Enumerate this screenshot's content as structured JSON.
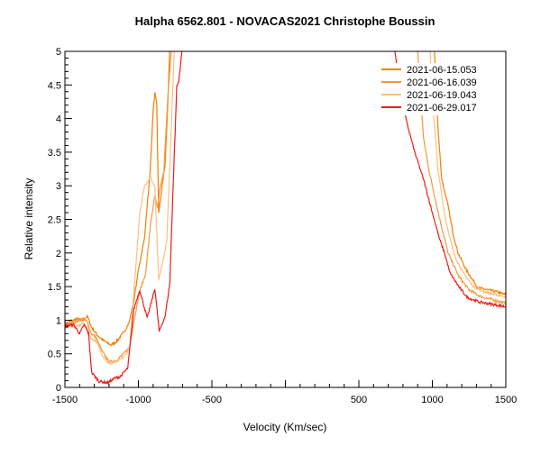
{
  "chart_data": {
    "type": "line",
    "title": "Halpha 6562.801 - NOVACAS2021   Christophe Boussin",
    "xlabel": "Velocity (Km/sec)",
    "ylabel": "Relative intensity",
    "xlim": [
      -1500,
      1500
    ],
    "ylim": [
      0,
      5
    ],
    "x_tick_labels": [
      "-1500",
      "-1000",
      "-500",
      "500",
      "1000",
      "1500"
    ],
    "x_tick_values": [
      -1500,
      -1000,
      -500,
      500,
      1000,
      1500
    ],
    "y_ticks": [
      "0",
      "0.5",
      "1",
      "1.5",
      "2",
      "2.5",
      "3",
      "3.5",
      "4",
      "4.5",
      "5"
    ],
    "grid": false,
    "legend_position": "top-right",
    "series": [
      {
        "name": "2021-06-15.053",
        "color": "#f57f00",
        "points": [
          [
            -1500,
            0.95
          ],
          [
            -1460,
            0.98
          ],
          [
            -1420,
            1.02
          ],
          [
            -1380,
            1.0
          ],
          [
            -1347,
            1.06
          ],
          [
            -1320,
            0.9
          ],
          [
            -1280,
            0.78
          ],
          [
            -1240,
            0.7
          ],
          [
            -1187,
            0.63
          ],
          [
            -1150,
            0.68
          ],
          [
            -1100,
            0.82
          ],
          [
            -1064,
            0.96
          ],
          [
            -1030,
            1.3
          ],
          [
            -1000,
            1.75
          ],
          [
            -960,
            2.2
          ],
          [
            -920,
            3.2
          ],
          [
            -900,
            4.1
          ],
          [
            -887,
            4.4
          ],
          [
            -875,
            4.2
          ],
          [
            -862,
            2.59
          ],
          [
            -850,
            2.8
          ],
          [
            -819,
            3.3
          ],
          [
            -800,
            4.2
          ],
          [
            -788,
            5.0
          ],
          [
            1015,
            5.0
          ],
          [
            1040,
            3.8
          ],
          [
            1064,
            3.1
          ],
          [
            1107,
            2.7
          ],
          [
            1140,
            2.3
          ],
          [
            1175,
            2.0
          ],
          [
            1230,
            1.75
          ],
          [
            1310,
            1.48
          ],
          [
            1380,
            1.45
          ],
          [
            1440,
            1.42
          ],
          [
            1500,
            1.38
          ]
        ]
      },
      {
        "name": "2021-06-16.039",
        "color": "#f7983a",
        "points": [
          [
            -1500,
            0.92
          ],
          [
            -1460,
            0.95
          ],
          [
            -1420,
            0.98
          ],
          [
            -1380,
            1.02
          ],
          [
            -1350,
            0.98
          ],
          [
            -1320,
            0.8
          ],
          [
            -1290,
            0.75
          ],
          [
            -1250,
            0.55
          ],
          [
            -1200,
            0.38
          ],
          [
            -1150,
            0.4
          ],
          [
            -1100,
            0.5
          ],
          [
            -1060,
            0.6
          ],
          [
            -1030,
            1.0
          ],
          [
            -991,
            1.43
          ],
          [
            -950,
            1.7
          ],
          [
            -919,
            2.41
          ],
          [
            -888,
            2.84
          ],
          [
            -870,
            2.68
          ],
          [
            -854,
            2.95
          ],
          [
            -827,
            3.22
          ],
          [
            -797,
            4.42
          ],
          [
            -776,
            5.0
          ],
          [
            900,
            5.0
          ],
          [
            940,
            3.7
          ],
          [
            980,
            3.2
          ],
          [
            1040,
            2.6
          ],
          [
            1107,
            2.0
          ],
          [
            1180,
            1.65
          ],
          [
            1250,
            1.45
          ],
          [
            1330,
            1.35
          ],
          [
            1420,
            1.3
          ],
          [
            1500,
            1.25
          ]
        ]
      },
      {
        "name": "2021-06-19.043",
        "color": "#fbbf86",
        "points": [
          [
            -1500,
            0.88
          ],
          [
            -1460,
            0.92
          ],
          [
            -1420,
            0.9
          ],
          [
            -1380,
            0.95
          ],
          [
            -1350,
            0.9
          ],
          [
            -1320,
            0.72
          ],
          [
            -1290,
            0.7
          ],
          [
            -1250,
            0.5
          ],
          [
            -1200,
            0.35
          ],
          [
            -1150,
            0.38
          ],
          [
            -1100,
            0.45
          ],
          [
            -1060,
            0.58
          ],
          [
            -1021,
            1.7
          ],
          [
            -991,
            2.59
          ],
          [
            -960,
            2.99
          ],
          [
            -919,
            3.13
          ],
          [
            -888,
            2.99
          ],
          [
            -862,
            1.61
          ],
          [
            -837,
            1.83
          ],
          [
            -807,
            2.19
          ],
          [
            -786,
            3.31
          ],
          [
            -756,
            5.0
          ],
          [
            985,
            5.0
          ],
          [
            1010,
            4.0
          ],
          [
            1040,
            3.2
          ],
          [
            1090,
            2.5
          ],
          [
            1144,
            2.0
          ],
          [
            1210,
            1.7
          ],
          [
            1280,
            1.5
          ],
          [
            1360,
            1.42
          ],
          [
            1430,
            1.38
          ],
          [
            1500,
            1.35
          ]
        ]
      },
      {
        "name": "2021-06-29.017",
        "color": "#ee1c1c",
        "points": [
          [
            -1500,
            0.9
          ],
          [
            -1492,
            0.92
          ],
          [
            -1440,
            0.93
          ],
          [
            -1400,
            0.8
          ],
          [
            -1369,
            0.93
          ],
          [
            -1339,
            0.8
          ],
          [
            -1318,
            0.22
          ],
          [
            -1267,
            0.09
          ],
          [
            -1206,
            0.07
          ],
          [
            -1160,
            0.14
          ],
          [
            -1124,
            0.16
          ],
          [
            -1072,
            0.29
          ],
          [
            -1032,
            1.16
          ],
          [
            -991,
            1.45
          ],
          [
            -940,
            1.03
          ],
          [
            -888,
            1.47
          ],
          [
            -858,
            0.83
          ],
          [
            -817,
            1.07
          ],
          [
            -786,
            1.56
          ],
          [
            -766,
            2.86
          ],
          [
            -739,
            4.47
          ],
          [
            -725,
            4.56
          ],
          [
            -704,
            5.0
          ],
          [
            745,
            5.0
          ],
          [
            790,
            4.3
          ],
          [
            825,
            3.95
          ],
          [
            880,
            3.5
          ],
          [
            942,
            3.08
          ],
          [
            1000,
            2.6
          ],
          [
            1050,
            2.2
          ],
          [
            1083,
            2.0
          ],
          [
            1120,
            1.7
          ],
          [
            1180,
            1.5
          ],
          [
            1236,
            1.34
          ],
          [
            1320,
            1.27
          ],
          [
            1400,
            1.24
          ],
          [
            1500,
            1.2
          ]
        ]
      }
    ]
  }
}
